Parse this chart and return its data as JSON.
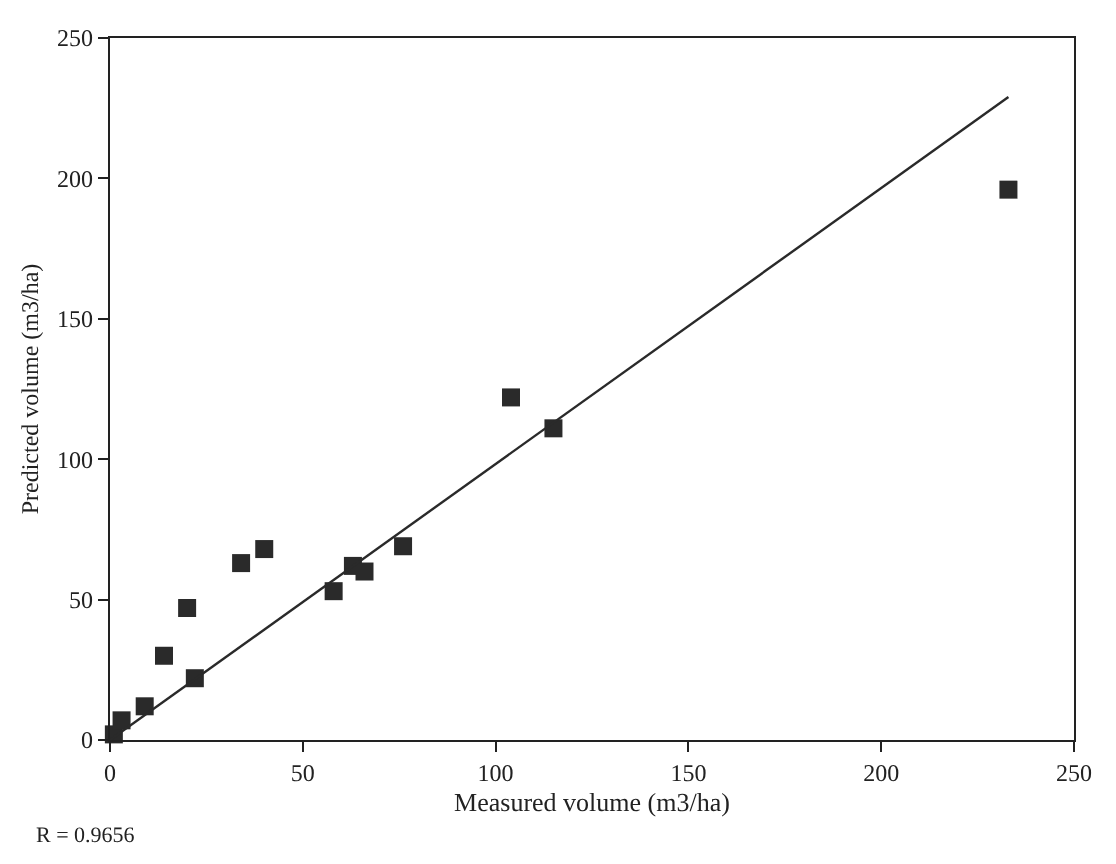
{
  "chart_data": {
    "type": "scatter",
    "xlabel": "Measured volume (m3/ha)",
    "ylabel": "Predicted volume (m3/ha)",
    "xlim": [
      0,
      250
    ],
    "ylim": [
      0,
      250
    ],
    "xticks": [
      0,
      50,
      100,
      150,
      200,
      250
    ],
    "yticks": [
      0,
      50,
      100,
      150,
      200,
      250
    ],
    "marker": "square",
    "annotations": [
      "R = 0.9656"
    ],
    "series": [
      {
        "color": "#2a2a2a",
        "x": [
          1,
          3,
          9,
          14,
          20,
          22,
          34,
          40,
          58,
          63,
          66,
          76,
          104,
          115,
          233
        ],
        "values": [
          2,
          7,
          12,
          30,
          47,
          22,
          63,
          68,
          53,
          62,
          60,
          69,
          122,
          111,
          196
        ]
      },
      {
        "type": "line",
        "color": "#2a2a2a",
        "line_style": "solid",
        "marker": "none",
        "x": [
          0,
          233
        ],
        "values": [
          0,
          229
        ]
      }
    ]
  }
}
